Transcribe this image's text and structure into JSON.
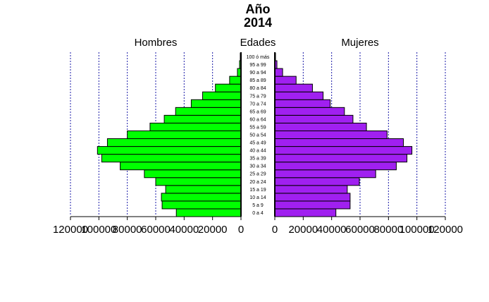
{
  "chart_data": {
    "type": "bar",
    "title_line1": "Año",
    "title_line2": "2014",
    "left_label": "Hombres",
    "center_label": "Edades",
    "right_label": "Mujeres",
    "xlim": [
      0,
      120000
    ],
    "grid": "vertical dotted blue",
    "categories": [
      "0 a 4",
      "5 a 9",
      "10 a 14",
      "15 a 19",
      "20 a 24",
      "25 a 29",
      "30 a 34",
      "35 a 39",
      "40 a 44",
      "45 a 49",
      "50 a 54",
      "55 a 59",
      "60 a 64",
      "65 a 69",
      "70 a 74",
      "75 a 79",
      "80 a 84",
      "85 a 89",
      "90 a 94",
      "95 a 99",
      "100 ó más"
    ],
    "series": [
      {
        "name": "Hombres",
        "color": "#00ff00",
        "values": [
          45500,
          55500,
          56000,
          53000,
          60000,
          68000,
          85000,
          98000,
          101000,
          94000,
          80000,
          64000,
          54000,
          46000,
          35000,
          27000,
          18000,
          8000,
          2500,
          1000,
          500
        ]
      },
      {
        "name": "Mujeres",
        "color": "#a020f0",
        "values": [
          43000,
          53000,
          53000,
          51000,
          59500,
          71000,
          85500,
          93000,
          96500,
          90500,
          79000,
          64500,
          55000,
          49000,
          39000,
          34000,
          26500,
          15000,
          5500,
          1500,
          500
        ]
      }
    ],
    "tick_values": [
      120000,
      100000,
      80000,
      60000,
      40000,
      20000,
      0
    ],
    "tick_labels_left": [
      "120000",
      "100000",
      "80000",
      "60000",
      "40000",
      "20000",
      "0"
    ],
    "tick_labels_right": [
      "0",
      "20000",
      "40000",
      "60000",
      "80000",
      "100000",
      "120000"
    ]
  }
}
